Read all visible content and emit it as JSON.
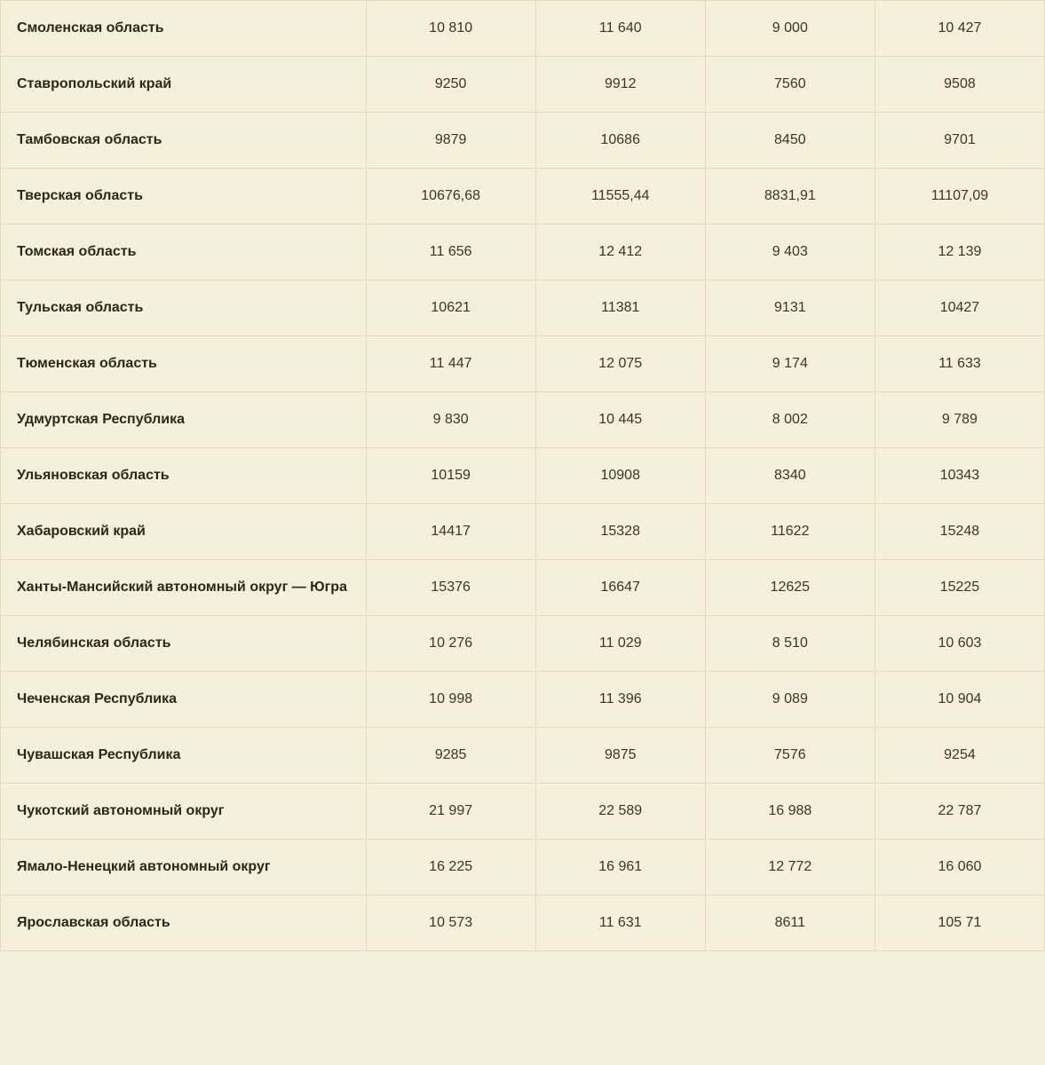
{
  "table": {
    "background_color": "#f5f0d9",
    "border_color": "#e2dcc0",
    "label_text_color": "#2d2818",
    "value_text_color": "#3d3520",
    "label_font_weight": 700,
    "value_font_weight": 400,
    "font_size": 16,
    "cell_padding": "22px 18px",
    "column_widths": [
      "35%",
      "16.25%",
      "16.25%",
      "16.25%",
      "16.25%"
    ],
    "rows": [
      {
        "label": "Смоленская область",
        "values": [
          "10 810",
          "11 640",
          "9 000",
          "10 427"
        ]
      },
      {
        "label": "Ставропольский край",
        "values": [
          "9250",
          "9912",
          "7560",
          "9508"
        ]
      },
      {
        "label": "Тамбовская область",
        "values": [
          "9879",
          "10686",
          "8450",
          "9701"
        ]
      },
      {
        "label": "Тверская область",
        "values": [
          "10676,68",
          "11555,44",
          "8831,91",
          "11107,09"
        ]
      },
      {
        "label": "Томская область",
        "values": [
          "11 656",
          "12 412",
          "9 403",
          "12 139"
        ]
      },
      {
        "label": "Тульская область",
        "values": [
          "10621",
          "11381",
          "9131",
          "10427"
        ]
      },
      {
        "label": "Тюменская область",
        "values": [
          "11 447",
          "12 075",
          "9 174",
          "11 633"
        ]
      },
      {
        "label": "Удмуртская Республика",
        "values": [
          "9 830",
          "10 445",
          "8 002",
          "9 789"
        ]
      },
      {
        "label": "Ульяновская область",
        "values": [
          "10159",
          "10908",
          "8340",
          "10343"
        ]
      },
      {
        "label": "Хабаровский край",
        "values": [
          "14417",
          "15328",
          "11622",
          "15248"
        ]
      },
      {
        "label": "Ханты-Мансийский автономный округ — Югра",
        "values": [
          "15376",
          "16647",
          "12625",
          "15225"
        ]
      },
      {
        "label": "Челябинская область",
        "values": [
          "10 276",
          "11 029",
          "8 510",
          "10 603"
        ]
      },
      {
        "label": "Чеченская Республика",
        "values": [
          "10 998",
          "11 396",
          "9 089",
          "10 904"
        ]
      },
      {
        "label": "Чувашская Республика",
        "values": [
          "9285",
          "9875",
          "7576",
          "9254"
        ]
      },
      {
        "label": "Чукотский автономный округ",
        "values": [
          "21 997",
          "22 589",
          "16 988",
          "22 787"
        ]
      },
      {
        "label": "Ямало-Ненецкий автономный округ",
        "values": [
          "16 225",
          "16 961",
          "12 772",
          "16 060"
        ]
      },
      {
        "label": "Ярославская область",
        "values": [
          "10 573",
          "11 631",
          "8611",
          "105 71"
        ]
      }
    ]
  }
}
